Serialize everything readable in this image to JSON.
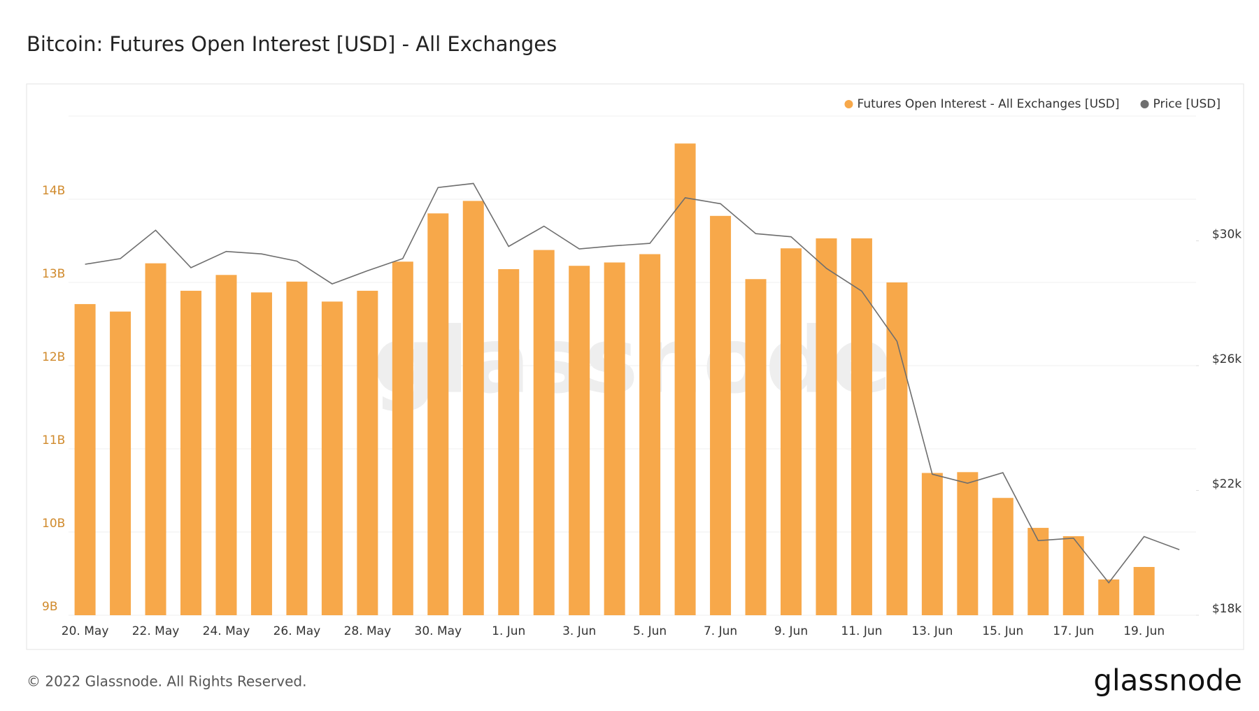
{
  "chart_data": {
    "type": "bar",
    "title": "Bitcoin: Futures Open Interest [USD] - All Exchanges",
    "footer": "© 2022 Glassnode. All Rights Reserved.",
    "logo": "glassnode",
    "watermark": "glassnode",
    "categories": [
      "20. May",
      null,
      "22. May",
      null,
      "24. May",
      null,
      "26. May",
      null,
      "28. May",
      null,
      "30. May",
      null,
      "1. Jun",
      null,
      "3. Jun",
      null,
      "5. Jun",
      null,
      "7. Jun",
      null,
      "9. Jun",
      null,
      "11. Jun",
      null,
      "13. Jun",
      null,
      "15. Jun",
      null,
      "17. Jun",
      null,
      "19. Jun",
      null
    ],
    "series": [
      {
        "name": "Futures Open Interest - All Exchanges [USD]",
        "color": "#f7a84a",
        "values": [
          12.74,
          12.65,
          13.23,
          12.9,
          13.09,
          12.88,
          13.01,
          12.77,
          12.9,
          13.25,
          13.83,
          13.98,
          13.16,
          13.39,
          13.2,
          13.24,
          13.34,
          14.67,
          13.8,
          13.04,
          13.41,
          13.53,
          13.53,
          13.0,
          10.71,
          10.72,
          10.41,
          10.05,
          9.95,
          9.43,
          9.58,
          null
        ]
      },
      {
        "name": "Price [USD]",
        "color": "#6e6e6e",
        "type": "line",
        "axis": "y2",
        "values": [
          29250,
          29430,
          30340,
          29140,
          29660,
          29580,
          29350,
          28620,
          29040,
          29430,
          31710,
          31840,
          29820,
          30470,
          29740,
          29840,
          29920,
          31380,
          31190,
          30230,
          30130,
          29120,
          28390,
          26780,
          22520,
          22230,
          22570,
          20390,
          20470,
          19040,
          20520,
          20100
        ]
      }
    ],
    "ylim": [
      9,
      15
    ],
    "yticks": [
      {
        "value": 9,
        "label": "9B"
      },
      {
        "value": 10,
        "label": "10B"
      },
      {
        "value": 11,
        "label": "11B"
      },
      {
        "value": 12,
        "label": "12B"
      },
      {
        "value": 13,
        "label": "13B"
      },
      {
        "value": 14,
        "label": "14B"
      }
    ],
    "y2lim": [
      18000,
      34000
    ],
    "y2ticks": [
      {
        "value": 18000,
        "label": "$18k"
      },
      {
        "value": 22000,
        "label": "$22k"
      },
      {
        "value": 26000,
        "label": "$26k"
      },
      {
        "value": 30000,
        "label": "$30k"
      }
    ],
    "grid": true
  }
}
